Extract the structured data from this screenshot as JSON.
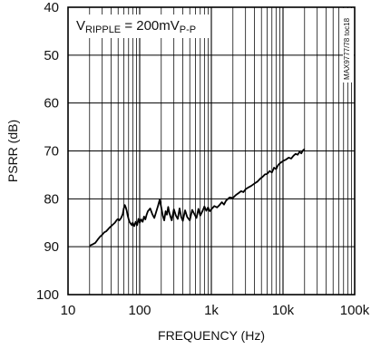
{
  "chart_data": {
    "type": "line",
    "title": "",
    "xlabel": "FREQUENCY (Hz)",
    "ylabel": "PSRR (dB)",
    "xscale": "log",
    "xlim": [
      10,
      100000
    ],
    "ylim": [
      40,
      100
    ],
    "y_inverted": true,
    "grid": true,
    "x_ticks": [
      10,
      100,
      1000,
      10000,
      100000
    ],
    "x_tick_labels": [
      "10",
      "100",
      "1k",
      "10k",
      "100k"
    ],
    "y_ticks": [
      40,
      50,
      60,
      70,
      80,
      90,
      100
    ],
    "y_tick_labels": [
      "40",
      "50",
      "60",
      "70",
      "80",
      "90",
      "100"
    ],
    "annotation": {
      "prefix": "V",
      "sub1": "RIPPLE",
      "middle": " = 200mV",
      "sub2": "P-P"
    },
    "side_code": "MAX9777/78 toc18",
    "series": [
      {
        "x": [
          20,
          22,
          24,
          26,
          28,
          30,
          32,
          34,
          36,
          38,
          40,
          42,
          45,
          48,
          50,
          52,
          55,
          58,
          60,
          62,
          64,
          66,
          68,
          70,
          72,
          75,
          78,
          80,
          84,
          88,
          92,
          96,
          100,
          105,
          110,
          115,
          120,
          125,
          130,
          140,
          150,
          160,
          170,
          180,
          190,
          200,
          210,
          220,
          230,
          240,
          250,
          260,
          280,
          300,
          320,
          340,
          360,
          380,
          400,
          430,
          460,
          500,
          540,
          580,
          620,
          660,
          700,
          750,
          800,
          850,
          900,
          950,
          1000,
          1100,
          1200,
          1300,
          1400,
          1500,
          1600,
          1800,
          2000,
          2200,
          2400,
          2600,
          2800,
          3000,
          3300,
          3600,
          4000,
          4400,
          4800,
          5200,
          5600,
          6000,
          6500,
          7000,
          7500,
          8000,
          8500,
          9000,
          10000,
          11000,
          12000,
          13000,
          14000,
          15000,
          16000,
          17000,
          18000,
          19000,
          20000
        ],
        "y": [
          89.8,
          89.5,
          89.2,
          88.5,
          87.9,
          87.5,
          87.0,
          86.8,
          86.4,
          86.0,
          85.7,
          85.4,
          85.0,
          84.4,
          84.2,
          84.5,
          84.0,
          83.2,
          82.0,
          81.3,
          81.8,
          82.5,
          83.5,
          84.2,
          84.8,
          85.2,
          85.5,
          85.0,
          85.7,
          84.8,
          85.5,
          84.2,
          85.0,
          84.3,
          84.8,
          83.7,
          84.3,
          83.3,
          82.6,
          82.0,
          83.2,
          84.0,
          82.7,
          81.5,
          80.2,
          81.8,
          83.5,
          84.5,
          82.6,
          83.3,
          81.7,
          83.0,
          84.5,
          82.2,
          83.5,
          84.2,
          82.0,
          83.8,
          84.6,
          82.4,
          83.8,
          84.5,
          82.3,
          83.2,
          84.0,
          82.1,
          83.5,
          82.6,
          81.6,
          82.5,
          81.8,
          82.6,
          82.2,
          81.5,
          81.8,
          81.3,
          80.7,
          81.2,
          80.4,
          79.7,
          79.8,
          79.2,
          78.8,
          78.4,
          78.6,
          78.0,
          77.6,
          77.3,
          76.8,
          76.4,
          75.8,
          75.4,
          74.9,
          74.8,
          74.2,
          74.5,
          73.5,
          73.8,
          73.0,
          72.6,
          72.1,
          71.8,
          71.4,
          71.6,
          71.0,
          70.6,
          70.8,
          70.2,
          70.5,
          69.9,
          69.6
        ]
      }
    ]
  }
}
